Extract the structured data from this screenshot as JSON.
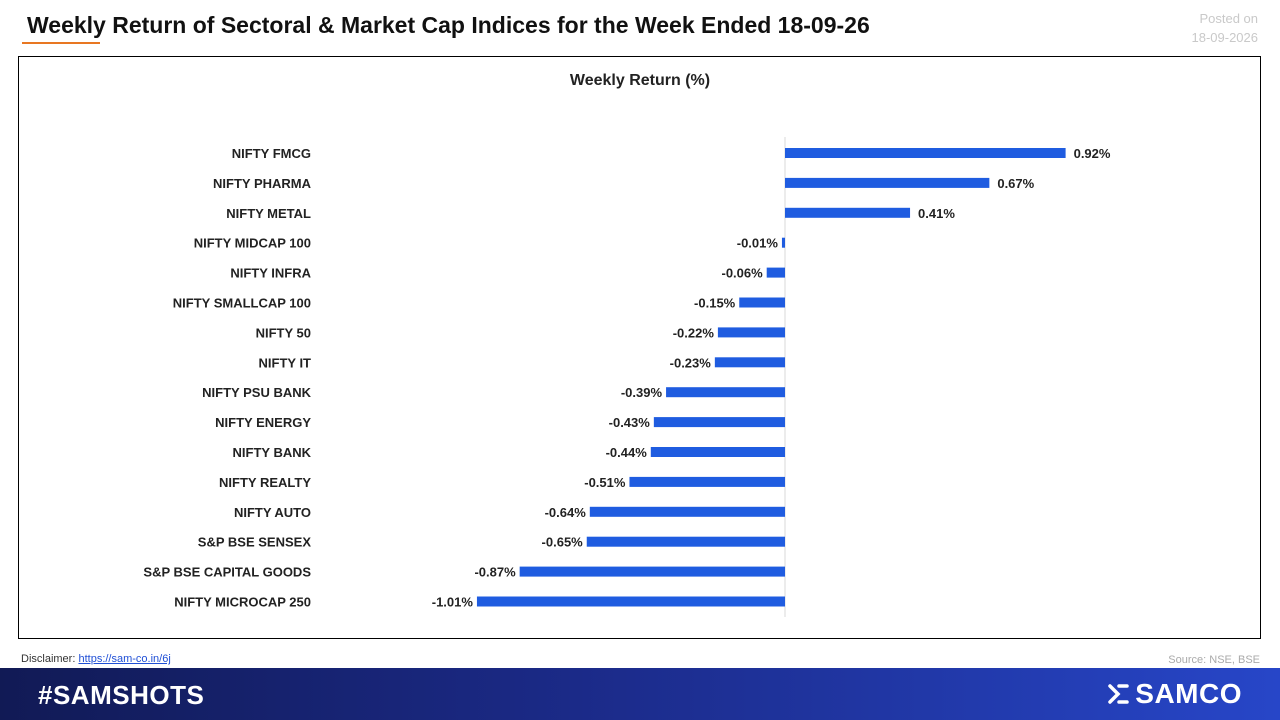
{
  "header": {
    "title": "Weekly Return of Sectoral & Market Cap Indices for the Week Ended 18-09-26",
    "posted_label": "Posted on",
    "posted_date": "18-09-2026"
  },
  "chart_data": {
    "type": "bar",
    "orientation": "horizontal",
    "title": "Weekly Return (%)",
    "categories": [
      "NIFTY FMCG",
      "NIFTY PHARMA",
      "NIFTY METAL",
      "NIFTY MIDCAP 100",
      "NIFTY INFRA",
      "NIFTY SMALLCAP 100",
      "NIFTY 50",
      "NIFTY IT",
      "NIFTY PSU BANK",
      "NIFTY ENERGY",
      "NIFTY BANK",
      "NIFTY REALTY",
      "NIFTY AUTO",
      "S&P BSE SENSEX",
      "S&P BSE CAPITAL GOODS",
      "NIFTY MICROCAP 250"
    ],
    "values": [
      0.92,
      0.67,
      0.41,
      -0.01,
      -0.06,
      -0.15,
      -0.22,
      -0.23,
      -0.39,
      -0.43,
      -0.44,
      -0.51,
      -0.64,
      -0.65,
      -0.87,
      -1.01
    ],
    "value_labels": [
      "0.92%",
      "0.67%",
      "0.41%",
      "-0.01%",
      "-0.06%",
      "-0.15%",
      "-0.22%",
      "-0.23%",
      "-0.39%",
      "-0.43%",
      "-0.44%",
      "-0.51%",
      "-0.64%",
      "-0.65%",
      "-0.87%",
      "-1.01%"
    ],
    "bar_color": "#1f5ce0",
    "grid": false,
    "legend": "none"
  },
  "footer": {
    "disclaimer_label": "Disclaimer:",
    "disclaimer_link": "https://sam-co.in/6j",
    "source": "Source: NSE, BSE",
    "hashtag": "#SAMSHOTS",
    "brand": "SAMCO"
  }
}
